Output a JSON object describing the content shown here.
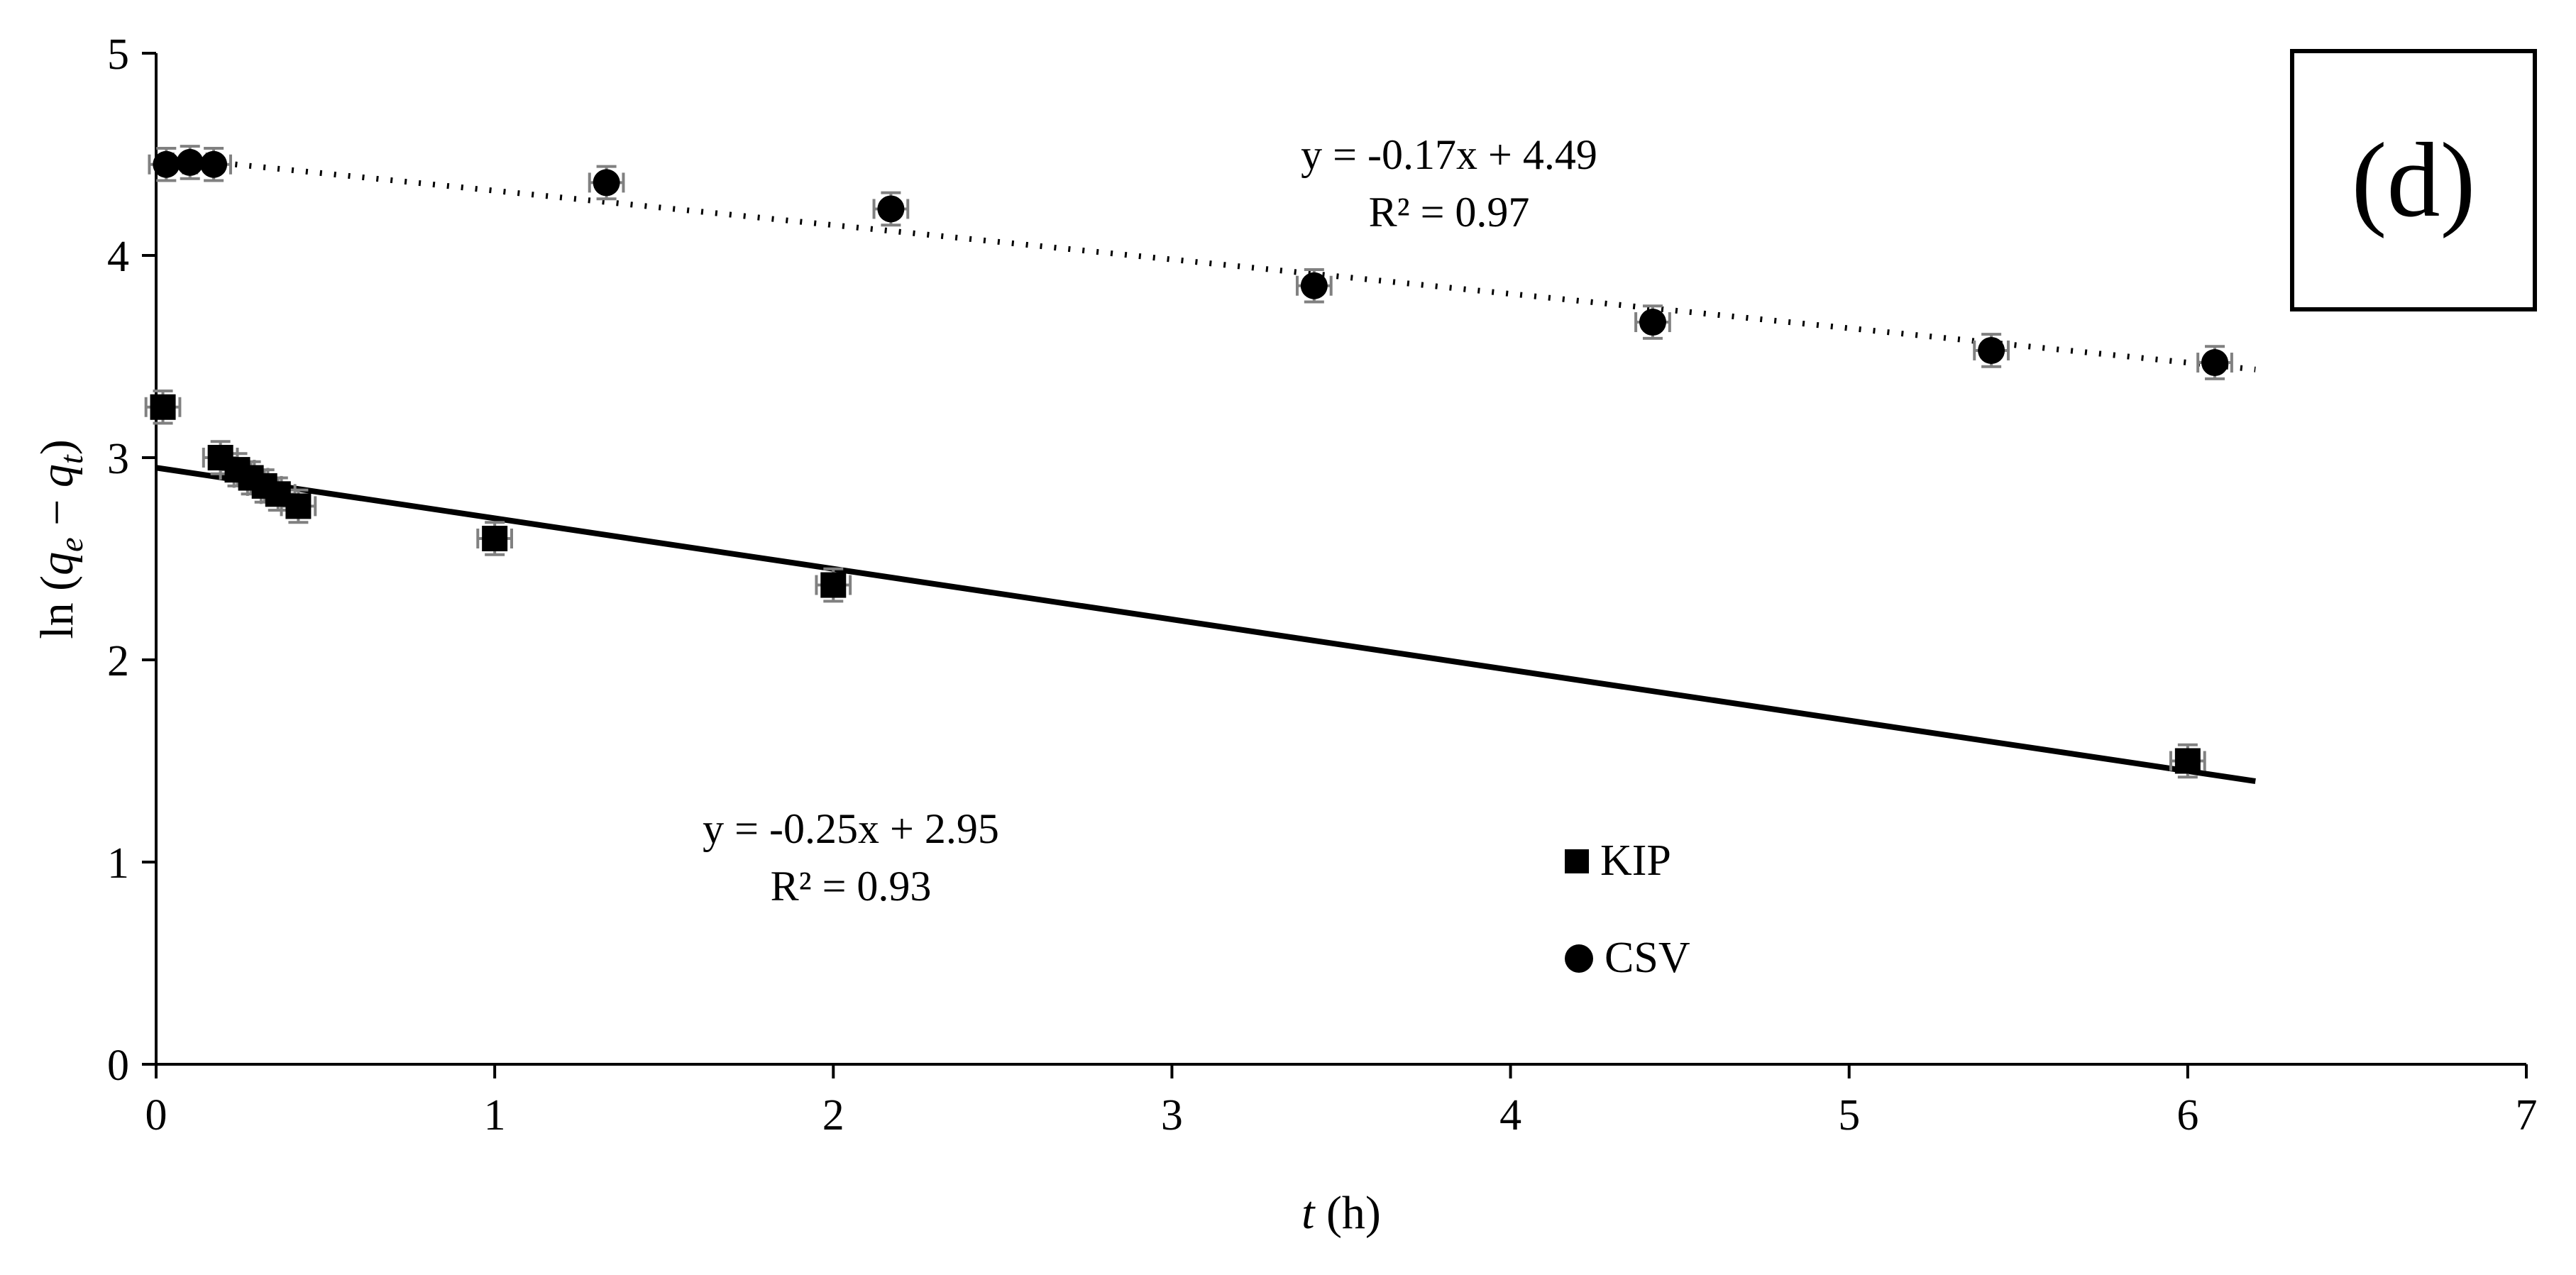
{
  "panel_label": "(d)",
  "legend": {
    "items": [
      {
        "label": "KIP",
        "marker": "square"
      },
      {
        "label": "CSV",
        "marker": "circle"
      }
    ]
  },
  "chart_data": {
    "type": "scatter",
    "title": "",
    "xlabel_parts": {
      "var": "t",
      "rest": " (h)"
    },
    "ylabel_parts": {
      "pre": "ln (",
      "var1": "q",
      "sub1": "e",
      "mid": " − ",
      "var2": "q",
      "sub2": "t",
      "post": ")"
    },
    "xlim": [
      0,
      7
    ],
    "ylim": [
      0,
      5
    ],
    "x_ticks": [
      0,
      1,
      2,
      3,
      4,
      5,
      6,
      7
    ],
    "y_ticks": [
      0,
      1,
      2,
      3,
      4,
      5
    ],
    "grid": false,
    "legend_position": "inside-lower-right",
    "colors": {
      "marker": "#000000",
      "error_bar": "#808080",
      "axis": "#000000"
    },
    "series": [
      {
        "name": "KIP",
        "marker": "square",
        "color": "#000000",
        "err_x": 0.05,
        "err_y": 0.08,
        "trendline": {
          "style": "solid",
          "slope": -0.25,
          "intercept": 2.95,
          "x_range": [
            0,
            6.2
          ],
          "equation": "y = -0.25x + 2.95",
          "r_squared": "R² = 0.93"
        },
        "points": [
          [
            0.02,
            3.25
          ],
          [
            0.19,
            3.0
          ],
          [
            0.24,
            2.94
          ],
          [
            0.28,
            2.9
          ],
          [
            0.32,
            2.86
          ],
          [
            0.36,
            2.82
          ],
          [
            0.42,
            2.76
          ],
          [
            1.0,
            2.6
          ],
          [
            2.0,
            2.37
          ],
          [
            6.0,
            1.5
          ]
        ]
      },
      {
        "name": "CSV",
        "marker": "circle",
        "color": "#000000",
        "err_x": 0.05,
        "err_y": 0.08,
        "trendline": {
          "style": "dotted",
          "slope": -0.17,
          "intercept": 4.49,
          "x_range": [
            0.15,
            6.2
          ],
          "equation": "y = -0.17x + 4.49",
          "r_squared": "R² = 0.97"
        },
        "points": [
          [
            0.03,
            4.45
          ],
          [
            0.1,
            4.46
          ],
          [
            0.17,
            4.45
          ],
          [
            1.33,
            4.36
          ],
          [
            2.17,
            4.23
          ],
          [
            3.42,
            3.85
          ],
          [
            4.42,
            3.67
          ],
          [
            5.42,
            3.53
          ],
          [
            6.08,
            3.47
          ]
        ]
      }
    ],
    "annotations": [
      {
        "series": "CSV",
        "lines": [
          "y = -0.17x + 4.49",
          "R² = 0.97"
        ]
      },
      {
        "series": "KIP",
        "lines": [
          "y = -0.25x + 2.95",
          "R² = 0.93"
        ]
      }
    ]
  }
}
